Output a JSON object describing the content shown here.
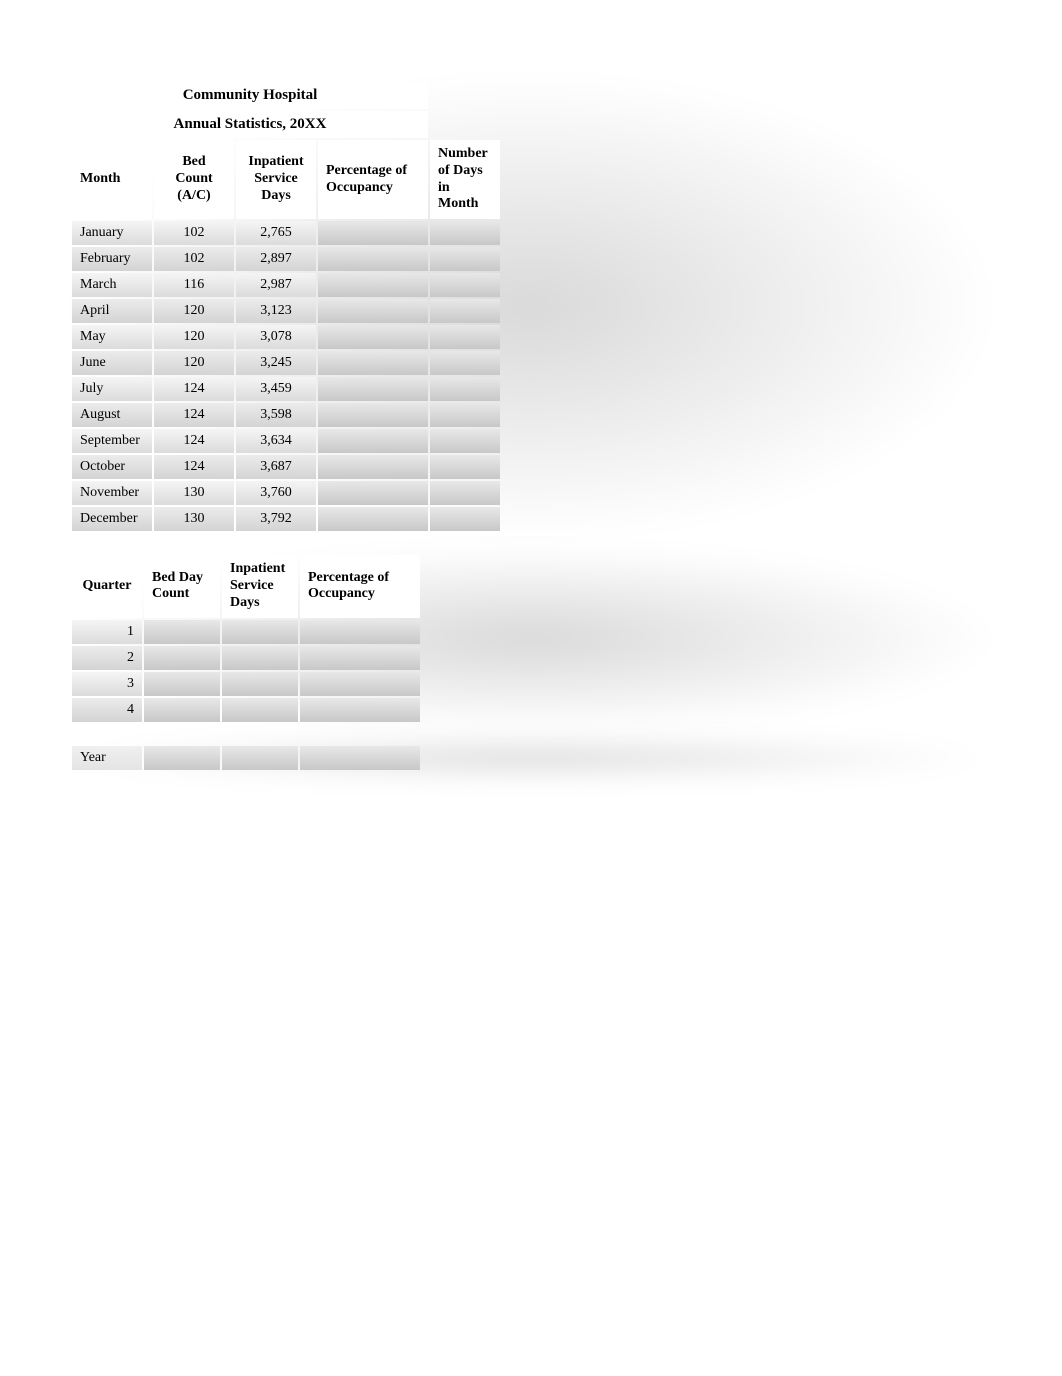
{
  "main_table": {
    "title_line1": "Community Hospital",
    "title_line2": "Annual Statistics, 20XX",
    "headers": {
      "month": "Month",
      "bed_count": "Bed Count (A/C)",
      "inpatient": "Inpatient Service Days",
      "percentage": "Percentage of Occupancy",
      "days": "Number of Days in Month"
    },
    "rows": [
      {
        "month": "January",
        "bed_count": "102",
        "inpatient": "2,765"
      },
      {
        "month": "February",
        "bed_count": "102",
        "inpatient": "2,897"
      },
      {
        "month": "March",
        "bed_count": "116",
        "inpatient": "2,987"
      },
      {
        "month": "April",
        "bed_count": "120",
        "inpatient": "3,123"
      },
      {
        "month": "May",
        "bed_count": "120",
        "inpatient": "3,078"
      },
      {
        "month": "June",
        "bed_count": "120",
        "inpatient": "3,245"
      },
      {
        "month": "July",
        "bed_count": "124",
        "inpatient": "3,459"
      },
      {
        "month": "August",
        "bed_count": "124",
        "inpatient": "3,598"
      },
      {
        "month": "September",
        "bed_count": "124",
        "inpatient": "3,634"
      },
      {
        "month": "October",
        "bed_count": "124",
        "inpatient": "3,687"
      },
      {
        "month": "November",
        "bed_count": "130",
        "inpatient": "3,760"
      },
      {
        "month": "December",
        "bed_count": "130",
        "inpatient": "3,792"
      }
    ]
  },
  "quarter_table": {
    "headers": {
      "quarter": "Quarter",
      "bed_day": "Bed Day Count",
      "inpatient": "Inpatient Service Days",
      "percentage": "Percentage of Occupancy"
    },
    "rows": [
      {
        "quarter": "1"
      },
      {
        "quarter": "2"
      },
      {
        "quarter": "3"
      },
      {
        "quarter": "4"
      }
    ]
  },
  "year_table": {
    "label": "Year"
  },
  "colors": {
    "background": "#ffffff",
    "cell_gradient_light": "#f5f5f5",
    "cell_gradient_dark": "#d4d4d4",
    "blank_gradient_light": "#e8e8e8",
    "blank_gradient_dark": "#c8c8c8",
    "text": "#000000"
  }
}
